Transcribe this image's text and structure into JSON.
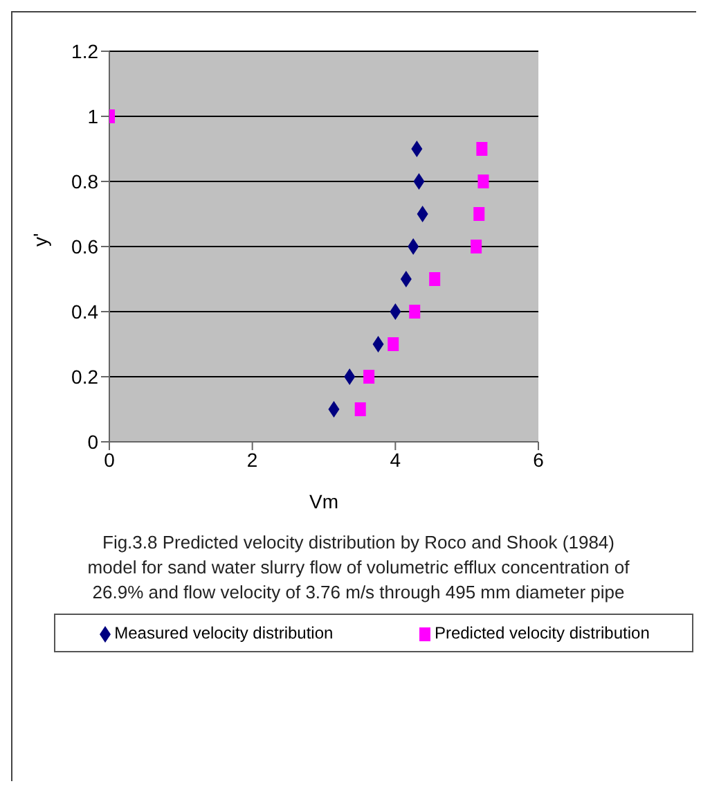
{
  "chart_data": {
    "type": "scatter",
    "title": "Fig.3.8 Predicted velocity distribution by Roco and Shook (1984) model for sand water slurry flow of volumetric efflux concentration of 26.9% and flow velocity of 3.76 m/s through 495 mm diameter pipe",
    "xlabel": "Vm",
    "ylabel": "y'",
    "xlim": [
      0,
      6
    ],
    "xticks": [
      0,
      2,
      4,
      6
    ],
    "ylim": [
      0,
      1.2
    ],
    "yticks": [
      0,
      0.2,
      0.4,
      0.6,
      0.8,
      1,
      1.2
    ],
    "grid": "y",
    "legend": "bottom",
    "series": [
      {
        "name": "Measured velocity distribution",
        "color": "#000080",
        "marker": "diamond",
        "x": [
          3.14,
          3.36,
          3.76,
          4.0,
          4.15,
          4.25,
          4.38,
          4.33,
          4.3
        ],
        "values": [
          0.1,
          0.2,
          0.3,
          0.4,
          0.5,
          0.6,
          0.7,
          0.8,
          0.9
        ]
      },
      {
        "name": "Predicted velocity distribution",
        "color": "#ff00ff",
        "marker": "square",
        "x": [
          3.51,
          3.63,
          3.97,
          4.27,
          4.55,
          5.13,
          5.17,
          5.23,
          5.21,
          0
        ],
        "values": [
          0.1,
          0.2,
          0.3,
          0.4,
          0.5,
          0.6,
          0.7,
          0.8,
          0.9,
          1.0
        ]
      }
    ]
  }
}
